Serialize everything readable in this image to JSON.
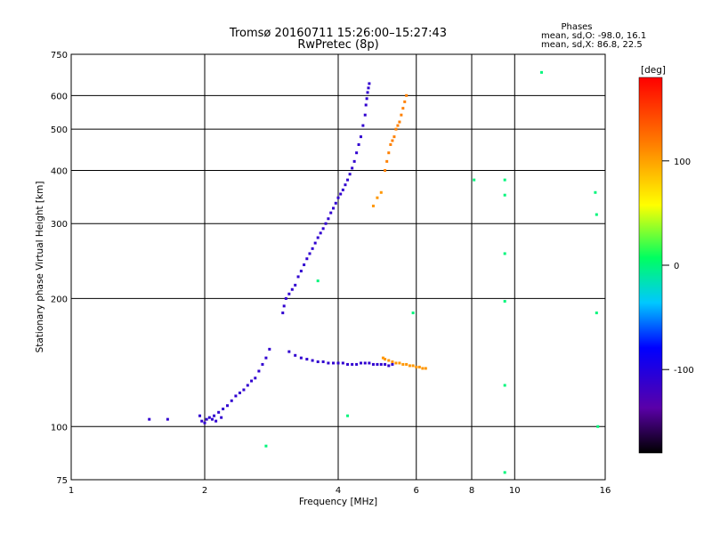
{
  "chart_data": {
    "type": "scatter",
    "title": "Tromsø 20160711 15:26:00–15:27:43",
    "subtitle": "RwPretec (8p)",
    "stats": {
      "heading": "Phases",
      "line_o": "mean, sd,O: -98.0, 16.1",
      "line_x": "mean, sd,X:  86.8, 22.5"
    },
    "xlabel": "Frequency [MHz]",
    "ylabel": "Stationary phase Virtual Height [km]",
    "x_scale": "log",
    "y_scale": "log",
    "xlim": [
      1,
      16
    ],
    "ylim": [
      75,
      750
    ],
    "x_ticks": [
      1,
      2,
      4,
      6,
      8,
      10,
      16
    ],
    "y_ticks": [
      75,
      100,
      200,
      300,
      400,
      500,
      600,
      750
    ],
    "grid": true,
    "colorbar": {
      "label": "[deg]",
      "range": [
        -180,
        180
      ],
      "ticks": [
        100,
        0,
        -100
      ]
    },
    "series": [
      {
        "values_x": [
          1.5,
          1.65,
          1.95,
          1.97,
          2.0,
          2.02,
          2.05,
          2.08,
          2.1,
          2.12,
          2.15,
          2.18,
          2.2,
          2.25,
          2.3,
          2.35,
          2.4,
          2.45,
          2.5,
          2.55,
          2.6,
          2.65,
          2.7,
          2.75,
          2.8,
          3.0,
          3.02,
          3.05,
          3.1,
          3.15,
          3.2,
          3.25,
          3.3,
          3.35,
          3.4,
          3.45,
          3.5,
          3.55,
          3.6,
          3.65,
          3.7,
          3.75,
          3.8,
          3.85,
          3.9,
          3.95,
          4.0,
          4.05,
          4.1,
          4.15,
          4.2,
          4.25,
          4.3,
          4.35,
          4.4,
          4.45,
          4.5,
          4.55,
          4.6,
          4.62,
          4.64,
          4.66,
          4.68,
          4.7
        ],
        "values_y": [
          104,
          104,
          106,
          103,
          102,
          104,
          105,
          104,
          106,
          103,
          108,
          105,
          110,
          112,
          115,
          118,
          120,
          122,
          125,
          128,
          130,
          135,
          140,
          145,
          152,
          185,
          192,
          200,
          205,
          210,
          215,
          225,
          232,
          240,
          248,
          255,
          262,
          270,
          278,
          285,
          292,
          300,
          308,
          318,
          326,
          335,
          345,
          352,
          360,
          370,
          380,
          392,
          405,
          420,
          440,
          460,
          480,
          510,
          540,
          570,
          590,
          610,
          625,
          640
        ],
        "phase": -110
      },
      {
        "values_x": [
          3.1,
          3.2,
          3.3,
          3.4,
          3.5,
          3.6,
          3.7,
          3.8,
          3.9,
          4.0,
          4.1,
          4.2,
          4.3,
          4.4,
          4.5,
          4.6,
          4.7,
          4.8,
          4.9,
          5.0,
          5.1,
          5.2,
          5.3
        ],
        "values_y": [
          150,
          147,
          145,
          144,
          143,
          142,
          142,
          141,
          141,
          141,
          141,
          140,
          140,
          140,
          141,
          141,
          141,
          140,
          140,
          140,
          140,
          139,
          140
        ],
        "phase": -110
      },
      {
        "values_x": [
          4.8,
          4.9,
          5.0,
          5.05,
          5.1,
          5.2,
          5.3,
          5.4,
          5.5,
          5.6,
          5.7,
          5.8,
          5.9,
          6.0,
          6.1,
          6.2,
          6.3
        ],
        "values_y": [
          330,
          345,
          355,
          145,
          144,
          143,
          142,
          141,
          141,
          140,
          140,
          139,
          139,
          138,
          138,
          137,
          137
        ],
        "phase": 105
      },
      {
        "values_x": [
          5.1,
          5.15,
          5.2,
          5.25,
          5.3,
          5.35,
          5.4,
          5.45,
          5.5,
          5.55,
          5.6,
          5.65,
          5.7
        ],
        "values_y": [
          400,
          420,
          440,
          460,
          470,
          480,
          500,
          510,
          520,
          540,
          560,
          580,
          600
        ],
        "phase": 115
      },
      {
        "values_x": [
          2.75,
          3.6,
          4.2,
          5.9,
          8.1,
          9.5,
          9.5,
          9.5,
          9.5,
          9.5,
          9.5,
          11.5,
          15.2,
          15.3,
          15.3,
          15.4
        ],
        "values_y": [
          90,
          220,
          106,
          185,
          380,
          380,
          350,
          255,
          197,
          125,
          78,
          680,
          355,
          315,
          185,
          100
        ],
        "phase": 0
      }
    ]
  }
}
